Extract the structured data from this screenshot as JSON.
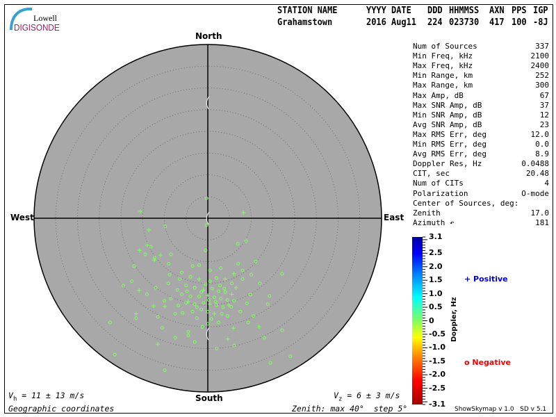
{
  "logo": {
    "line1": "Lowell",
    "line2": "DIGISONDE"
  },
  "header": {
    "labels": [
      "STATION NAME",
      "YYYY DATE",
      "DDD",
      "HHMMSS",
      "AXN",
      "PPS",
      "IGP"
    ],
    "values": [
      "Grahamstown",
      "2016 Aug11",
      "224",
      "023730",
      "417",
      "100",
      "-8J"
    ]
  },
  "directions": {
    "north": "North",
    "south": "South",
    "east": "East",
    "west": "West"
  },
  "info": [
    {
      "label": "Num of Sources",
      "value": "337"
    },
    {
      "label": "Min Freq, kHz",
      "value": "2100"
    },
    {
      "label": "Max Freq, kHz",
      "value": "2400"
    },
    {
      "label": "Min Range, km",
      "value": "252"
    },
    {
      "label": "Max Range, km",
      "value": "300"
    },
    {
      "label": "Max Amp, dB",
      "value": "67"
    },
    {
      "label": "Max SNR Amp, dB",
      "value": "37"
    },
    {
      "label": "Min SNR Amp, dB",
      "value": "12"
    },
    {
      "label": "Avg SNR Amp, dB",
      "value": "23"
    },
    {
      "label": "Max RMS Err, deg",
      "value": "12.0"
    },
    {
      "label": "Min RMS Err, deg",
      "value": "0.0"
    },
    {
      "label": "Avg RMS Err, deg",
      "value": "8.9"
    },
    {
      "label": "Doppler Res, Hz",
      "value": "0.0488"
    },
    {
      "label": "CIT, sec",
      "value": "20.48"
    },
    {
      "label": "Num of CITs",
      "value": "4"
    },
    {
      "label": "Polarization",
      "value": "O-mode"
    },
    {
      "label": "Center of Sources, deg:",
      "value": ""
    },
    {
      "label": "       Zenith",
      "value": "17.0"
    },
    {
      "label": "       Azimuth ↶",
      "value": "181"
    }
  ],
  "colorbar": {
    "title": "Doppler, Hz",
    "ticks": [
      "3.1",
      "2.5",
      "2.0",
      "1.5",
      "1.0",
      "0.5",
      "0",
      "-0.5",
      "-1.0",
      "-1.5",
      "-2.0",
      "-2.5",
      "-3.1"
    ],
    "range": [
      -3.1,
      3.1
    ],
    "colors": [
      "#a00000",
      "#ff0000",
      "#ff8000",
      "#ffff00",
      "#80ff60",
      "#00ffff",
      "#0080ff",
      "#0000ff",
      "#0000a0"
    ]
  },
  "legend": {
    "positive": "Positive",
    "negative": "Negative",
    "positive_color": "#0000dd",
    "negative_color": "#ee0000"
  },
  "footer": {
    "vh": "V",
    "vh_sub": "h",
    "vh_rest": " = 11 ± 13 m/s",
    "vz": "V",
    "vz_sub": "z",
    "vz_rest": " = 6 ± 3 m/s",
    "coords": "Geographic coordinates",
    "zenith": "Zenith: max 40°  step 5°",
    "version": "ShowSkymap v 1.0   SD v 5.1"
  },
  "chart_data": {
    "type": "scatter",
    "projection": "polar skymap, zenith angle radial",
    "zenith_max_deg": 40,
    "zenith_step_deg": 5,
    "point_color": "#80ff60",
    "plot_bg": "#a8a8a8",
    "points_east_north_deg": [
      [
        -15.5,
        1.6,
        "+"
      ],
      [
        8.2,
        1.3,
        "+"
      ],
      [
        -13.6,
        -2.7,
        "+"
      ],
      [
        -13.9,
        -6.2,
        "+"
      ],
      [
        -15.7,
        -7.4,
        "+"
      ],
      [
        -10.9,
        -8.5,
        "+"
      ],
      [
        -12.3,
        -9.6,
        "+"
      ],
      [
        -15.8,
        -16.6,
        "+"
      ],
      [
        -12.5,
        -20.2,
        "+"
      ],
      [
        -9.9,
        -20.3,
        "+"
      ],
      [
        -4.5,
        -19.2,
        "+"
      ],
      [
        11.8,
        -25,
        "+"
      ],
      [
        5.9,
        -25.3,
        "+"
      ],
      [
        4.6,
        -27.8,
        "+"
      ],
      [
        -0.3,
        4.6,
        "o"
      ],
      [
        -0.3,
        -1.6,
        "o"
      ],
      [
        -0.5,
        -7.4,
        "o"
      ],
      [
        -9.8,
        -1.9,
        "o"
      ],
      [
        -13.1,
        -6.6,
        "o"
      ],
      [
        -12.2,
        -9.1,
        "o"
      ],
      [
        -8.5,
        -8.3,
        "o"
      ],
      [
        6.9,
        -5.9,
        "o"
      ],
      [
        8.8,
        -5.3,
        "o"
      ],
      [
        -14.4,
        -8.3,
        "o"
      ],
      [
        -16.5,
        -23.0,
        "o"
      ],
      [
        -11.5,
        -22.7,
        "o"
      ],
      [
        -4.5,
        -27.0,
        "o"
      ],
      [
        -4.5,
        -26.1,
        "o"
      ],
      [
        0,
        -24.3,
        "o"
      ],
      [
        9.3,
        -24.0,
        "o"
      ],
      [
        -21.4,
        -31.4,
        "o"
      ],
      [
        -9.9,
        -35.0,
        "o"
      ],
      [
        6.1,
        -29.3,
        "o"
      ],
      [
        14.4,
        -33.3,
        "o"
      ],
      [
        19.0,
        -31.8,
        "o"
      ],
      [
        17.1,
        -25.8,
        "o"
      ],
      [
        17.1,
        -12.8,
        "o"
      ],
      [
        14.2,
        -17.9,
        "o"
      ],
      [
        13.8,
        -19.8,
        "o"
      ],
      [
        -8.8,
        -13.0,
        "o"
      ],
      [
        -9.1,
        -15.0,
        "o"
      ],
      [
        -12.0,
        -16.0,
        "o"
      ],
      [
        -14.0,
        -17.5,
        "o"
      ],
      [
        -8.5,
        -18.5,
        "o"
      ],
      [
        -6.8,
        -20.1,
        "o"
      ],
      [
        -5.8,
        -21.8,
        "o"
      ],
      [
        -1.3,
        -25.0,
        "o"
      ],
      [
        -10.5,
        -25.2,
        "o"
      ],
      [
        3.2,
        -22.0,
        "o"
      ],
      [
        5.4,
        -20.4,
        "o"
      ],
      [
        9.0,
        -19.6,
        "o"
      ],
      [
        9.8,
        -17.6,
        "o"
      ],
      [
        7.0,
        -10.5,
        "o"
      ],
      [
        8.0,
        -12.0,
        "o"
      ],
      [
        -2.0,
        -10.8,
        "o"
      ],
      [
        -6.0,
        -12.5,
        "o"
      ],
      [
        -4.0,
        -13.5,
        "o"
      ],
      [
        -2.0,
        -14.0,
        "+"
      ],
      [
        0.5,
        -14.5,
        "o"
      ],
      [
        2.0,
        -13.8,
        "o"
      ],
      [
        4.0,
        -14.0,
        "+"
      ],
      [
        5.5,
        -15.0,
        "o"
      ],
      [
        6.5,
        -16.0,
        "+"
      ],
      [
        -5.0,
        -15.5,
        "o"
      ],
      [
        -3.0,
        -16.0,
        "o"
      ],
      [
        -1.0,
        -16.5,
        "+"
      ],
      [
        1.0,
        -16.2,
        "o"
      ],
      [
        2.5,
        -16.8,
        "o"
      ],
      [
        4.0,
        -17.0,
        "o"
      ],
      [
        5.5,
        -17.5,
        "+"
      ],
      [
        -6.0,
        -17.5,
        "o"
      ],
      [
        -4.0,
        -18.0,
        "o"
      ],
      [
        -2.0,
        -18.0,
        "o"
      ],
      [
        0.0,
        -17.8,
        "+"
      ],
      [
        1.5,
        -18.2,
        "o"
      ],
      [
        3.0,
        -18.5,
        "o"
      ],
      [
        4.5,
        -18.8,
        "o"
      ],
      [
        -5.0,
        -19.5,
        "o"
      ],
      [
        -3.0,
        -19.8,
        "o"
      ],
      [
        -1.0,
        -19.5,
        "o"
      ],
      [
        0.5,
        -19.8,
        "+"
      ],
      [
        2.0,
        -20.0,
        "o"
      ],
      [
        3.5,
        -20.5,
        "o"
      ],
      [
        6.0,
        -19.0,
        "o"
      ],
      [
        -3.5,
        -21.5,
        "o"
      ],
      [
        -1.5,
        -21.0,
        "o"
      ],
      [
        0.0,
        -21.5,
        "o"
      ],
      [
        1.5,
        -22.0,
        "+"
      ],
      [
        4.5,
        -22.5,
        "o"
      ],
      [
        -2.5,
        -23.0,
        "o"
      ],
      [
        0.8,
        -23.2,
        "o"
      ],
      [
        2.5,
        -24.0,
        "o"
      ],
      [
        -7.5,
        -22.0,
        "o"
      ],
      [
        -7.0,
        -16.5,
        "o"
      ],
      [
        -10.0,
        -19.0,
        "o"
      ],
      [
        7.5,
        -21.5,
        "o"
      ],
      [
        8.0,
        -14.0,
        "o"
      ],
      [
        6.0,
        -12.8,
        "+"
      ],
      [
        3.0,
        -11.5,
        "o"
      ],
      [
        0.5,
        -12.0,
        "o"
      ],
      [
        -3.5,
        -11.0,
        "o"
      ],
      [
        -1.5,
        -17.0,
        "o"
      ],
      [
        2.8,
        -15.5,
        "o"
      ],
      [
        -0.5,
        -15.2,
        "o"
      ],
      [
        1.8,
        -19.2,
        "o"
      ],
      [
        -2.5,
        -20.5,
        "o"
      ],
      [
        3.8,
        -16.2,
        "o"
      ],
      [
        -4.8,
        -16.8,
        "o"
      ],
      [
        0.2,
        -18.8,
        "o"
      ],
      [
        4.8,
        -20.0,
        "+"
      ],
      [
        -6.5,
        -14.0,
        "o"
      ],
      [
        -9.0,
        -10.5,
        "o"
      ],
      [
        11.0,
        -10.0,
        "o"
      ],
      [
        10.0,
        -13.0,
        "o"
      ],
      [
        12.0,
        -15.0,
        "o"
      ],
      [
        -17.5,
        -14.5,
        "o"
      ],
      [
        -16.5,
        -22.0,
        "+"
      ],
      [
        -17.0,
        -11.0,
        "o"
      ],
      [
        10.5,
        -22.5,
        "o"
      ],
      [
        -7.5,
        -27.5,
        "o"
      ],
      [
        -3.0,
        -28.5,
        "o"
      ],
      [
        -11.5,
        -29.0,
        "+"
      ],
      [
        2.0,
        -30.0,
        "o"
      ],
      [
        13.0,
        -27.5,
        "o"
      ],
      [
        -22.5,
        -24.0,
        "o"
      ],
      [
        -19.5,
        -15.5,
        "o"
      ]
    ]
  }
}
